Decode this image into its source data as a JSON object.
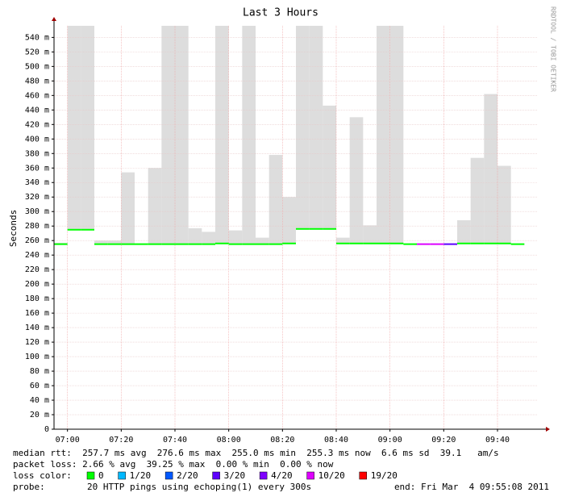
{
  "chart_data": {
    "type": "smoke",
    "title": "Last 3 Hours",
    "y_label": "Seconds",
    "side_text": "RRDTOOL / TOBI OETIKER",
    "xlim": [
      415,
      595
    ],
    "xticks": [
      {
        "value": 420,
        "label": "07:00"
      },
      {
        "value": 440,
        "label": "07:20"
      },
      {
        "value": 460,
        "label": "07:40"
      },
      {
        "value": 480,
        "label": "08:00"
      },
      {
        "value": 500,
        "label": "08:20"
      },
      {
        "value": 520,
        "label": "08:40"
      },
      {
        "value": 540,
        "label": "09:00"
      },
      {
        "value": 560,
        "label": "09:20"
      },
      {
        "value": 580,
        "label": "09:40"
      }
    ],
    "ylim": [
      0,
      0.556
    ],
    "yticks": [
      0,
      {
        "value": 0.02,
        "label": "20 m"
      },
      {
        "value": 0.04,
        "label": "40 m"
      },
      {
        "value": 0.06,
        "label": "60 m"
      },
      {
        "value": 0.08,
        "label": "80 m"
      },
      {
        "value": 0.1,
        "label": "100 m"
      },
      {
        "value": 0.12,
        "label": "120 m"
      },
      {
        "value": 0.14,
        "label": "140 m"
      },
      {
        "value": 0.16,
        "label": "160 m"
      },
      {
        "value": 0.18,
        "label": "180 m"
      },
      {
        "value": 0.2,
        "label": "200 m"
      },
      {
        "value": 0.22,
        "label": "220 m"
      },
      {
        "value": 0.24,
        "label": "240 m"
      },
      {
        "value": 0.26,
        "label": "260 m"
      },
      {
        "value": 0.28,
        "label": "280 m"
      },
      {
        "value": 0.3,
        "label": "300 m"
      },
      {
        "value": 0.32,
        "label": "320 m"
      },
      {
        "value": 0.34,
        "label": "340 m"
      },
      {
        "value": 0.36,
        "label": "360 m"
      },
      {
        "value": 0.38,
        "label": "380 m"
      },
      {
        "value": 0.4,
        "label": "400 m"
      },
      {
        "value": 0.42,
        "label": "420 m"
      },
      {
        "value": 0.44,
        "label": "440 m"
      },
      {
        "value": 0.46,
        "label": "460 m"
      },
      {
        "value": 0.48,
        "label": "480 m"
      },
      {
        "value": 0.5,
        "label": "500 m"
      },
      {
        "value": 0.52,
        "label": "520 m"
      },
      {
        "value": 0.54,
        "label": "540 m"
      }
    ],
    "grid": true,
    "x": [
      415,
      420,
      425,
      430,
      435,
      440,
      445,
      450,
      455,
      460,
      465,
      470,
      475,
      480,
      485,
      490,
      495,
      500,
      505,
      510,
      515,
      520,
      525,
      530,
      535,
      540,
      545,
      550,
      555,
      560,
      565,
      570,
      575,
      580,
      585,
      590
    ],
    "series": [
      {
        "name": "median rtt",
        "values": [
          0.255,
          0.275,
          0.275,
          0.255,
          0.255,
          0.255,
          0.255,
          0.255,
          0.255,
          0.255,
          0.255,
          0.255,
          0.256,
          0.255,
          0.255,
          0.255,
          0.255,
          0.256,
          0.276,
          0.276,
          0.276,
          0.256,
          0.256,
          0.256,
          0.256,
          0.256,
          0.255,
          0.255,
          0.255,
          0.255,
          0.256,
          0.256,
          0.256,
          0.256,
          0.255,
          null
        ],
        "colors": [
          "#00ff00",
          "#00ff00",
          "#00ff00",
          "#00ff00",
          "#00ff00",
          "#00ff00",
          "#00ff00",
          "#00ff00",
          "#00ff00",
          "#00ff00",
          "#00ff00",
          "#00ff00",
          "#00ff00",
          "#00ff00",
          "#00ff00",
          "#00ff00",
          "#00ff00",
          "#00ff00",
          "#00ff00",
          "#00ff00",
          "#00ff00",
          "#00ff00",
          "#00ff00",
          "#00ff00",
          "#00ff00",
          "#00ff00",
          "#00ff00",
          "#dd00ff",
          "#dd00ff",
          "#5e00ff",
          "#00ff00",
          "#00ff00",
          "#00ff00",
          "#00ff00",
          "#00ff00",
          "#00ff00"
        ]
      },
      {
        "name": "max rtt",
        "color": "#dddddd",
        "values": [
          0.257,
          0.556,
          0.556,
          0.26,
          0.26,
          0.354,
          0.256,
          0.36,
          0.556,
          0.556,
          0.277,
          0.272,
          0.556,
          0.274,
          0.556,
          0.264,
          0.378,
          0.32,
          0.556,
          0.556,
          0.446,
          0.264,
          0.43,
          0.281,
          0.556,
          0.556,
          0.256,
          0.256,
          0.256,
          0.256,
          0.288,
          0.374,
          0.462,
          0.363,
          0.256,
          null
        ]
      }
    ],
    "footer": {
      "rtt": "median rtt:  257.7 ms avg  276.6 ms max  255.0 ms min  255.3 ms now  6.6 ms sd  39.1   am/s",
      "loss": "packet loss: 2.66 % avg  39.25 % max  0.00 % min  0.00 % now",
      "loss_label": "loss color:",
      "loss_colors": [
        {
          "label": "0",
          "color": "#00ff00"
        },
        {
          "label": "1/20",
          "color": "#00b8ff"
        },
        {
          "label": "2/20",
          "color": "#0059ff"
        },
        {
          "label": "3/20",
          "color": "#5e00ff"
        },
        {
          "label": "4/20",
          "color": "#7e00ff"
        },
        {
          "label": "10/20",
          "color": "#dd00ff"
        },
        {
          "label": "19/20",
          "color": "#ff0000"
        }
      ],
      "probe_label": "probe:",
      "probe": "20 HTTP pings using echoping(1) every 300s",
      "end": "end: Fri Mar  4 09:55:08 2011"
    }
  }
}
